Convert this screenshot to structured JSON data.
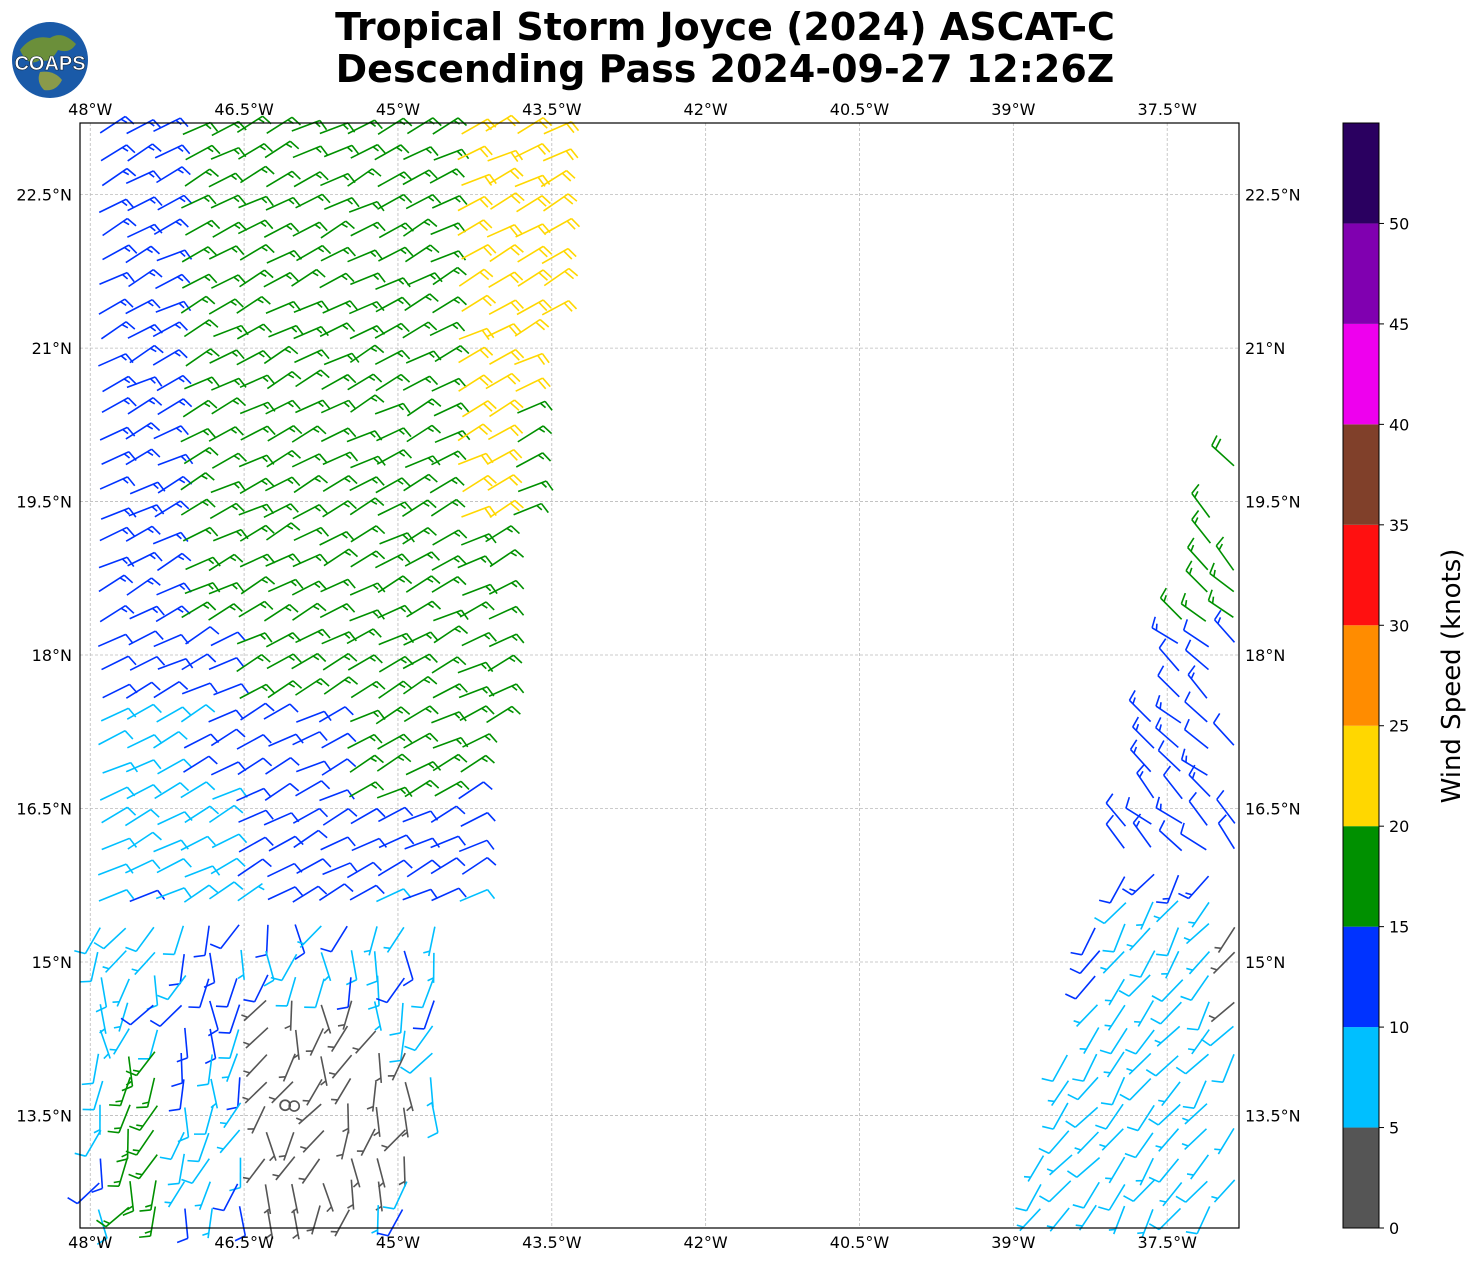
{
  "title_line1": "Tropical Storm Joyce (2024) ASCAT-C",
  "title_line2": "Descending Pass 2024-09-27 12:26Z",
  "logo_text": "COAPS",
  "chart_data": {
    "type": "wind-barb map",
    "lon_range": [
      -48.1,
      -36.8
    ],
    "lat_range": [
      12.4,
      23.2
    ],
    "lon_ticks": [
      "48°W",
      "46.5°W",
      "45°W",
      "43.5°W",
      "42°W",
      "40.5°W",
      "39°W",
      "37.5°W"
    ],
    "lat_ticks": [
      "22.5°N",
      "21°N",
      "19.5°N",
      "18°N",
      "16.5°N",
      "15°N",
      "13.5°N"
    ],
    "colorbar": {
      "label": "Wind Speed (knots)",
      "ticks": [
        "0",
        "5",
        "10",
        "15",
        "20",
        "25",
        "30",
        "35",
        "40",
        "45",
        "50"
      ],
      "bins": [
        {
          "range": [
            0,
            5
          ],
          "color": "#555555"
        },
        {
          "range": [
            5,
            10
          ],
          "color": "#00bfff"
        },
        {
          "range": [
            10,
            15
          ],
          "color": "#0033ff"
        },
        {
          "range": [
            15,
            20
          ],
          "color": "#009000"
        },
        {
          "range": [
            20,
            25
          ],
          "color": "#ffd700"
        },
        {
          "range": [
            25,
            30
          ],
          "color": "#ff8c00"
        },
        {
          "range": [
            30,
            35
          ],
          "color": "#ff1010"
        },
        {
          "range": [
            35,
            40
          ],
          "color": "#80402a"
        },
        {
          "range": [
            40,
            45
          ],
          "color": "#ee00ee"
        },
        {
          "range": [
            45,
            50
          ],
          "color": "#8000b0"
        },
        {
          "range": [
            50,
            55
          ],
          "color": "#2a0060"
        }
      ]
    }
  }
}
